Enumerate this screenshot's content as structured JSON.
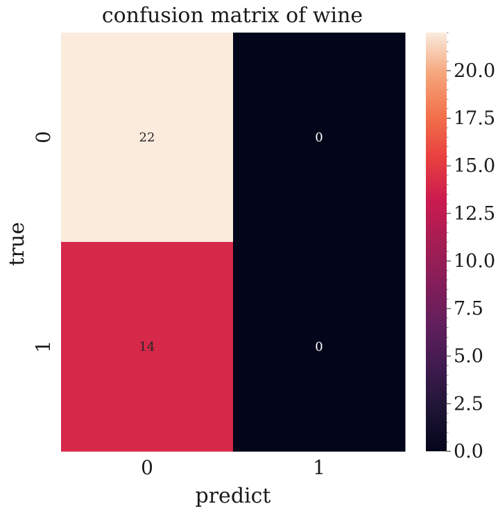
{
  "chart_data": {
    "type": "heatmap",
    "title": "confusion matrix of wine",
    "xlabel": "predict",
    "ylabel": "true",
    "x_categories": [
      "0",
      "1"
    ],
    "y_categories": [
      "0",
      "1"
    ],
    "values": [
      [
        22,
        0
      ],
      [
        14,
        0
      ]
    ],
    "annotations": [
      "22",
      "0",
      "14",
      "0"
    ],
    "colorbar": {
      "range": [
        0,
        22
      ],
      "ticks": [
        0.0,
        2.5,
        5.0,
        7.5,
        10.0,
        12.5,
        15.0,
        17.5,
        20.0
      ],
      "tick_labels": [
        "0.0",
        "2.5",
        "5.0",
        "7.5",
        "10.0",
        "12.5",
        "15.0",
        "17.5",
        "20.0"
      ]
    },
    "colormap": "rocket",
    "grid": false
  }
}
